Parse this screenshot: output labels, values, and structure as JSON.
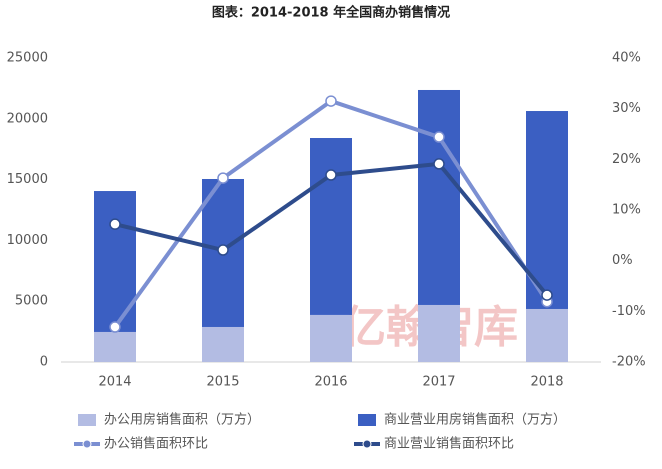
{
  "chart_data": {
    "type": "bar",
    "title": "图表：2014-2018 年全国商办销售情况",
    "categories": [
      "2014",
      "2015",
      "2016",
      "2017",
      "2018"
    ],
    "series": [
      {
        "name": "办公用房销售面积（万方）",
        "type": "bar",
        "color": "#b3bce3",
        "values": [
          2470,
          2880,
          3870,
          4690,
          4360
        ]
      },
      {
        "name": "商业营业用房销售面积（万方）",
        "type": "bar",
        "color": "#3b5fc2",
        "values": [
          11590,
          12170,
          14550,
          17680,
          16280
        ]
      },
      {
        "name": "办公销售面积环比",
        "type": "line",
        "axis": "y2",
        "color": "#7b8fd2",
        "values": [
          -13.1,
          16.3,
          31.5,
          24.4,
          -8.1
        ]
      },
      {
        "name": "商业营业销售面积环比",
        "type": "line",
        "axis": "y2",
        "color": "#2e4c8c",
        "values": [
          7.2,
          2.1,
          16.9,
          19.1,
          -6.8
        ]
      }
    ],
    "ylim": [
      0,
      25000
    ],
    "yticks": [
      0,
      5000,
      10000,
      15000,
      20000,
      25000
    ],
    "y2lim": [
      -20,
      40
    ],
    "y2ticks": [
      {
        "value": -20,
        "label": "-20%"
      },
      {
        "value": -10,
        "label": "-10%"
      },
      {
        "value": 0,
        "label": "0%"
      },
      {
        "value": 10,
        "label": "10%"
      },
      {
        "value": 20,
        "label": "20%"
      },
      {
        "value": 30,
        "label": "30%"
      },
      {
        "value": 40,
        "label": "40%"
      }
    ],
    "grid": false,
    "legend": "bottom",
    "watermark": "亿翰智库"
  }
}
